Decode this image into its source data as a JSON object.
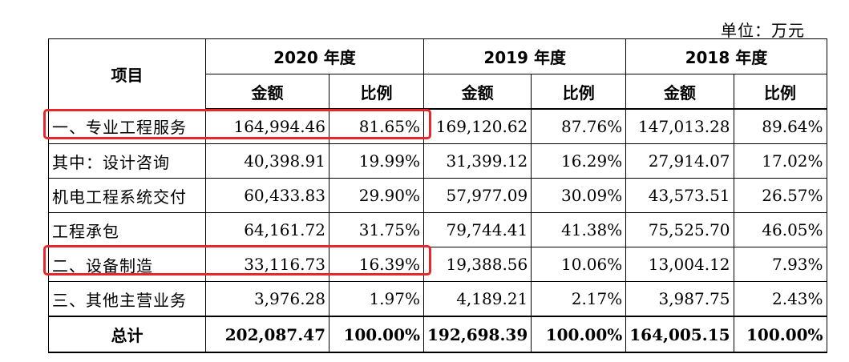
{
  "unit_note": "单位：万元",
  "header": {
    "item": "项目",
    "years": [
      "2020 年度",
      "2019 年度",
      "2018 年度"
    ],
    "amount": "金额",
    "ratio": "比例"
  },
  "rows": [
    {
      "label": "一、专业工程服务",
      "values": [
        "164,994.46",
        "81.65%",
        "169,120.62",
        "87.76%",
        "147,013.28",
        "89.64%"
      ]
    },
    {
      "label": "其中：设计咨询",
      "values": [
        "40,398.91",
        "19.99%",
        "31,399.12",
        "16.29%",
        "27,914.07",
        "17.02%"
      ]
    },
    {
      "label": "机电工程系统交付",
      "values": [
        "60,433.83",
        "29.90%",
        "57,977.09",
        "30.09%",
        "43,573.51",
        "26.57%"
      ]
    },
    {
      "label": "工程承包",
      "values": [
        "64,161.72",
        "31.75%",
        "79,744.41",
        "41.38%",
        "75,525.70",
        "46.05%"
      ]
    },
    {
      "label": "二、设备制造",
      "values": [
        "33,116.73",
        "16.39%",
        "19,388.56",
        "10.06%",
        "13,004.12",
        "7.93%"
      ]
    },
    {
      "label": "三、其他主营业务",
      "values": [
        "3,976.28",
        "1.97%",
        "4,189.21",
        "2.17%",
        "3,987.75",
        "2.43%"
      ]
    }
  ],
  "total": {
    "label": "总计",
    "values": [
      "202,087.47",
      "100.00%",
      "192,698.39",
      "100.00%",
      "164,005.15",
      "100.00%"
    ]
  },
  "highlight_color": "#e8262b"
}
